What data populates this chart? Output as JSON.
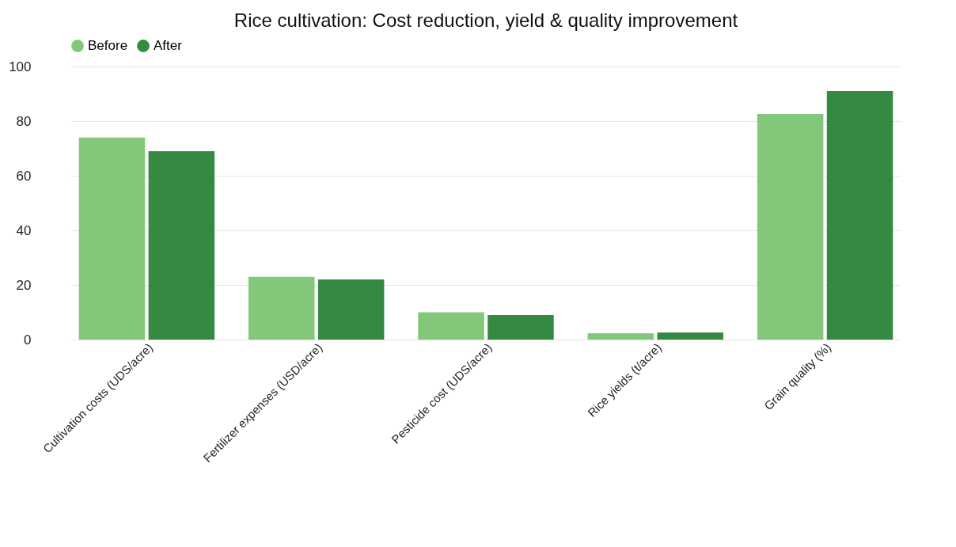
{
  "chart_data": {
    "type": "bar",
    "title": "Rice cultivation: Cost reduction, yield & quality improvement",
    "categories": [
      "Cultivation costs (UDS/acre)",
      "Fertilizer expenses (USD/acre)",
      "Pesticide cost (UDS/acre)",
      "Rice yields (t/acre)",
      "Grain quality (%)"
    ],
    "series": [
      {
        "name": "Before",
        "color": "#82c77a",
        "values": [
          74,
          23,
          10,
          2.3,
          82.6
        ]
      },
      {
        "name": "After",
        "color": "#348a41",
        "values": [
          69,
          22,
          9,
          2.6,
          91
        ]
      }
    ],
    "ylim": [
      0,
      100
    ],
    "yticks": [
      0,
      20,
      40,
      60,
      80,
      100
    ],
    "grid": "y",
    "legend": "top"
  }
}
